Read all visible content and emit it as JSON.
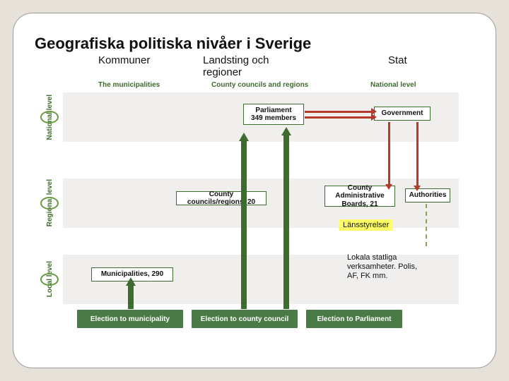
{
  "title": "Geografiska politiska nivåer i Sverige",
  "columns": {
    "kommuner": "Kommuner",
    "landsting": "Landsting och regioner",
    "stat": "Stat"
  },
  "subheaders": {
    "municipalities": "The municipalities",
    "county_councils": "County councils and regions",
    "national": "National level"
  },
  "levels": {
    "national": "National level",
    "regional": "Regional level",
    "local": "Local level"
  },
  "boxes": {
    "parliament": "Parliament\n349 members",
    "government": "Government",
    "cc_regions": "County councils/regions, 20",
    "cab": "County Administrative Boards, 21",
    "authorities": "Authorities",
    "municipalities": "Municipalities, 290"
  },
  "elections": {
    "e1": "Election to municipality",
    "e2": "Election to county council",
    "e3": "Election to Parliament"
  },
  "highlights": {
    "lansstyrelser": "Länsstyrelser"
  },
  "note": "Lokala statliga verksamheter. Polis,\nAF, FK mm.",
  "colors": {
    "page_bg": "#e6e2d9",
    "card_bg": "#ffffff",
    "band_bg": "#f0efed",
    "green_dark": "#3e6b2f",
    "green_fill": "#4a7a46",
    "green_outline": "#6b9a43",
    "red": "#b43a2a",
    "dash": "#8aa05a",
    "highlight": "#ffff66"
  }
}
